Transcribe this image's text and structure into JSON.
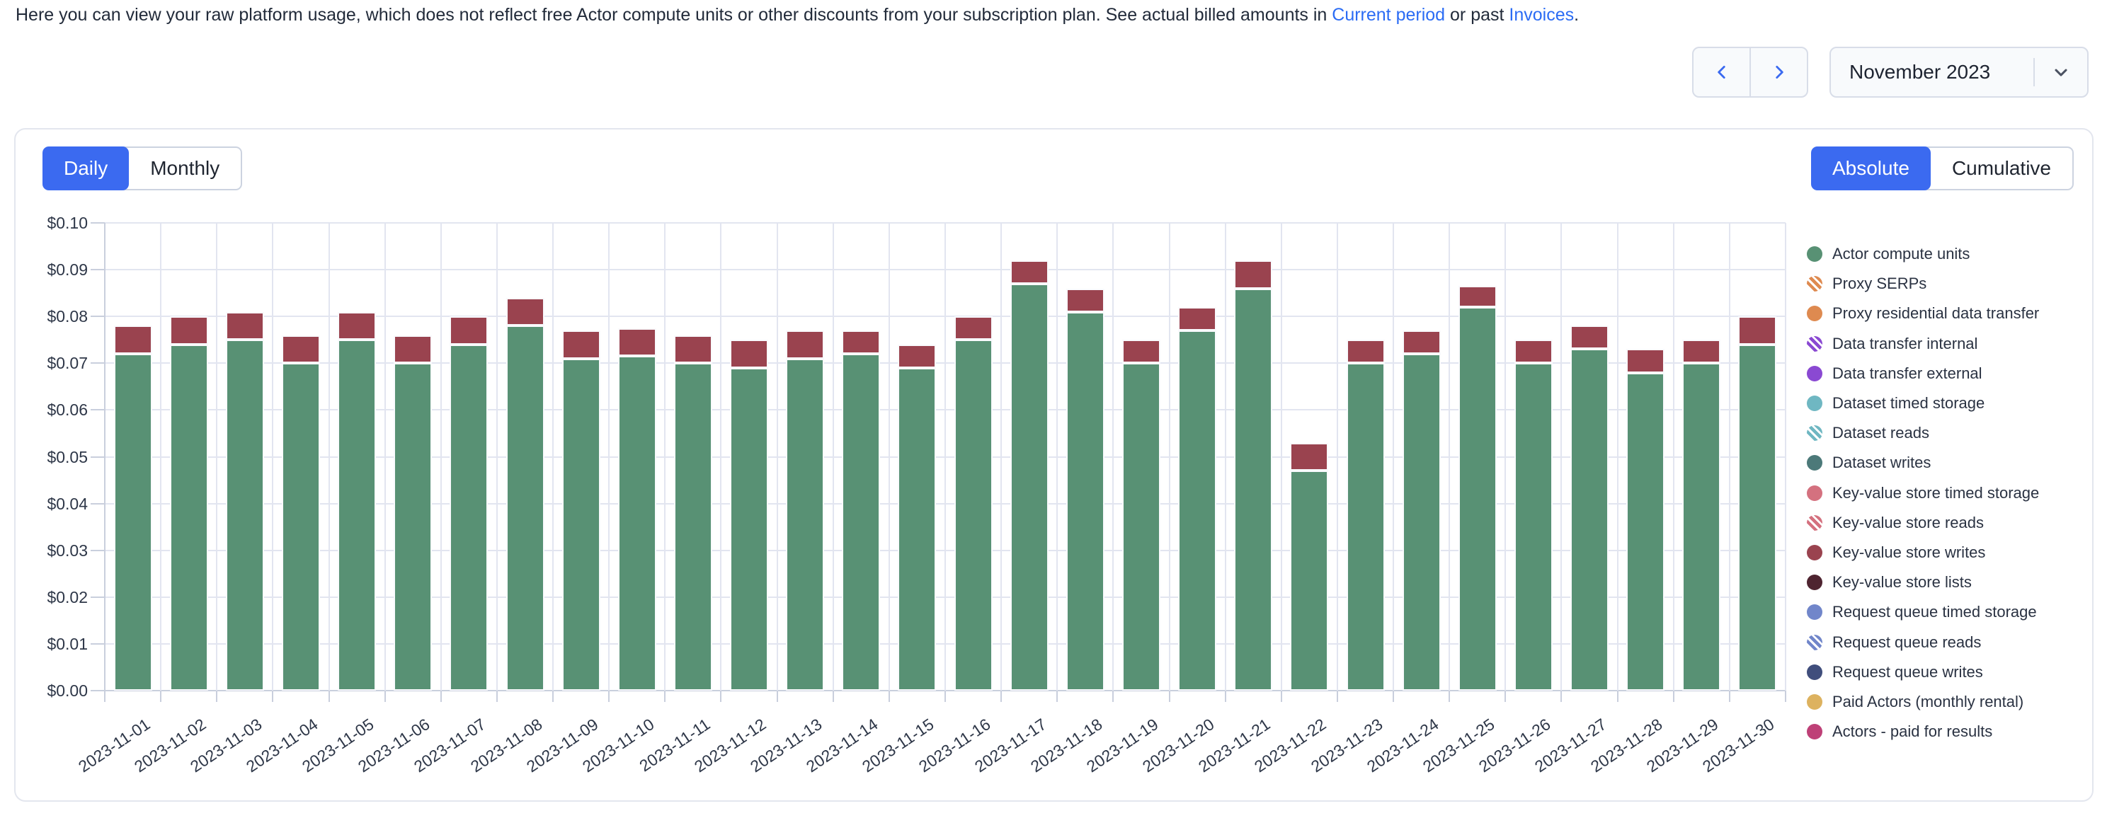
{
  "intro": {
    "text_before": "Here you can view your raw platform usage, which does not reflect free Actor compute units or other discounts from your subscription plan. See actual billed amounts in ",
    "link_current_period": "Current period",
    "text_middle": " or past ",
    "link_invoices": "Invoices",
    "text_after": "."
  },
  "period_nav": {
    "prev_icon": "chevron-left",
    "next_icon": "chevron-right",
    "selected_period": "November 2023",
    "caret_icon": "chevron-down"
  },
  "toggles": {
    "granularity": {
      "options": [
        "Daily",
        "Monthly"
      ],
      "selected": "Daily"
    },
    "mode": {
      "options": [
        "Absolute",
        "Cumulative"
      ],
      "selected": "Absolute"
    }
  },
  "colors": {
    "accent_blue": "#3b6af0",
    "link_blue": "#2b6cf4",
    "bar_green": "#589174",
    "bar_dark_red": "#9A434F",
    "gridline": "#e2e5f0",
    "axis": "#c9cfdd"
  },
  "chart_data": {
    "type": "bar",
    "stacked": true,
    "grid": true,
    "legend_position": "right",
    "ylim": [
      0,
      0.1
    ],
    "y_tick_step": 0.01,
    "y_tick_prefix": "$",
    "categories": [
      "2023-11-01",
      "2023-11-02",
      "2023-11-03",
      "2023-11-04",
      "2023-11-05",
      "2023-11-06",
      "2023-11-07",
      "2023-11-08",
      "2023-11-09",
      "2023-11-10",
      "2023-11-11",
      "2023-11-12",
      "2023-11-13",
      "2023-11-14",
      "2023-11-15",
      "2023-11-16",
      "2023-11-17",
      "2023-11-18",
      "2023-11-19",
      "2023-11-20",
      "2023-11-21",
      "2023-11-22",
      "2023-11-23",
      "2023-11-24",
      "2023-11-25",
      "2023-11-26",
      "2023-11-27",
      "2023-11-28",
      "2023-11-29",
      "2023-11-30"
    ],
    "series": [
      {
        "name": "Actor compute units",
        "color": "#589174",
        "values": [
          0.072,
          0.074,
          0.075,
          0.07,
          0.075,
          0.07,
          0.074,
          0.078,
          0.071,
          0.0715,
          0.07,
          0.069,
          0.071,
          0.072,
          0.069,
          0.075,
          0.087,
          0.081,
          0.07,
          0.077,
          0.086,
          0.047,
          0.07,
          0.072,
          0.082,
          0.07,
          0.073,
          0.068,
          0.07,
          0.074
        ]
      },
      {
        "name": "Key-value store writes",
        "color": "#9A434F",
        "values": [
          0.006,
          0.006,
          0.006,
          0.006,
          0.006,
          0.006,
          0.006,
          0.006,
          0.006,
          0.006,
          0.006,
          0.006,
          0.006,
          0.005,
          0.005,
          0.005,
          0.005,
          0.005,
          0.005,
          0.005,
          0.006,
          0.006,
          0.005,
          0.005,
          0.0045,
          0.005,
          0.005,
          0.005,
          0.005,
          0.006
        ]
      }
    ],
    "legend": [
      {
        "label": "Actor compute units",
        "color": "#589174",
        "striped": false
      },
      {
        "label": "Proxy SERPs",
        "color": "#DE8A50",
        "striped": true
      },
      {
        "label": "Proxy residential data transfer",
        "color": "#DE8A50",
        "striped": false
      },
      {
        "label": "Data transfer internal",
        "color": "#8A49D2",
        "striped": true
      },
      {
        "label": "Data transfer external",
        "color": "#8A49D2",
        "striped": false
      },
      {
        "label": "Dataset timed storage",
        "color": "#6FB7C2",
        "striped": false
      },
      {
        "label": "Dataset reads",
        "color": "#6FB7C2",
        "striped": true
      },
      {
        "label": "Dataset writes",
        "color": "#4C7979",
        "striped": false
      },
      {
        "label": "Key-value store timed storage",
        "color": "#D4717F",
        "striped": false
      },
      {
        "label": "Key-value store reads",
        "color": "#D4717F",
        "striped": true
      },
      {
        "label": "Key-value store writes",
        "color": "#9A434F",
        "striped": false
      },
      {
        "label": "Key-value store lists",
        "color": "#4E2430",
        "striped": false
      },
      {
        "label": "Request queue timed storage",
        "color": "#7186CA",
        "striped": false
      },
      {
        "label": "Request queue reads",
        "color": "#7186CA",
        "striped": true
      },
      {
        "label": "Request queue writes",
        "color": "#404E7C",
        "striped": false
      },
      {
        "label": "Paid Actors (monthly rental)",
        "color": "#DDB25F",
        "striped": false
      },
      {
        "label": "Actors - paid for results",
        "color": "#BE4077",
        "striped": false
      }
    ]
  }
}
